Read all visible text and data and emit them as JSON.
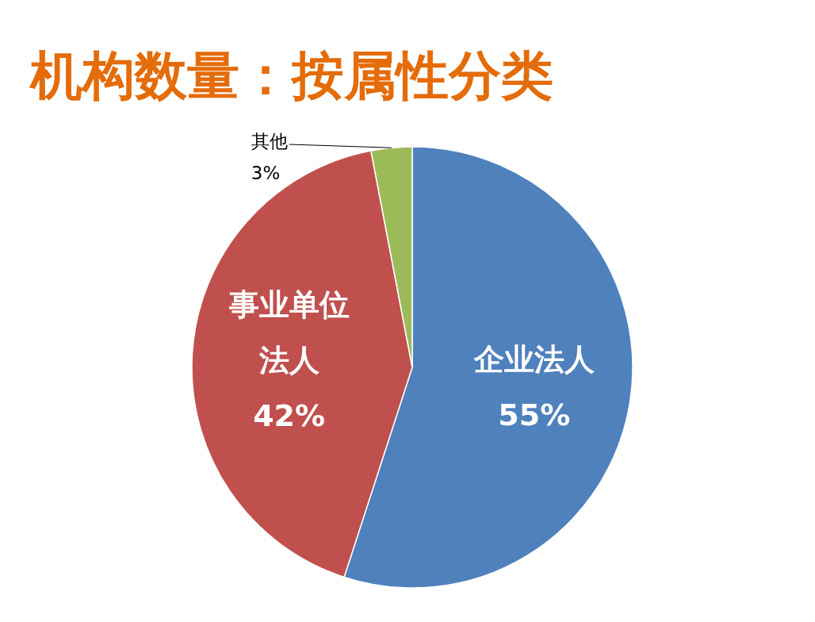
{
  "chart_data": {
    "type": "pie",
    "title": "机构数量：按属性分类",
    "categories": [
      "企业法人",
      "事业单位法人",
      "其他"
    ],
    "values": [
      55,
      42,
      3
    ],
    "value_labels": [
      "55%",
      "42%",
      "3%"
    ],
    "colors": [
      "#4f81bd",
      "#c0504d",
      "#9bbb59"
    ]
  }
}
